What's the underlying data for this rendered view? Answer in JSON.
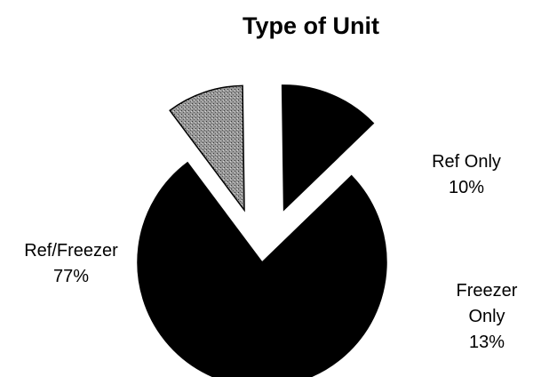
{
  "chart_data": {
    "type": "pie",
    "title": "Type of Unit",
    "categories": [
      "Ref/Freezer",
      "Ref Only",
      "Freezer Only"
    ],
    "values": [
      77,
      10,
      13
    ],
    "value_labels": [
      "77%",
      "10%",
      "13%"
    ],
    "colors": [
      "#000000",
      "#8a8a8a",
      "#000000"
    ]
  }
}
